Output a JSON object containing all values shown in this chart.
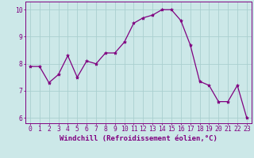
{
  "x": [
    0,
    1,
    2,
    3,
    4,
    5,
    6,
    7,
    8,
    9,
    10,
    11,
    12,
    13,
    14,
    15,
    16,
    17,
    18,
    19,
    20,
    21,
    22,
    23
  ],
  "y": [
    7.9,
    7.9,
    7.3,
    7.6,
    8.3,
    7.5,
    8.1,
    8.0,
    8.4,
    8.4,
    8.8,
    9.5,
    9.7,
    9.8,
    10.0,
    10.0,
    9.6,
    8.7,
    7.35,
    7.2,
    6.6,
    6.6,
    7.2,
    6.0
  ],
  "xlabel": "Windchill (Refroidissement éolien,°C)",
  "ylim": [
    5.8,
    10.3
  ],
  "xlim": [
    -0.5,
    23.5
  ],
  "xticks": [
    0,
    1,
    2,
    3,
    4,
    5,
    6,
    7,
    8,
    9,
    10,
    11,
    12,
    13,
    14,
    15,
    16,
    17,
    18,
    19,
    20,
    21,
    22,
    23
  ],
  "yticks": [
    6,
    7,
    8,
    9,
    10
  ],
  "line_color": "#800080",
  "marker": "*",
  "marker_size": 3,
  "bg_color": "#cce8e8",
  "grid_color": "#aacfcf",
  "xlabel_fontsize": 6.5,
  "tick_fontsize": 5.8
}
